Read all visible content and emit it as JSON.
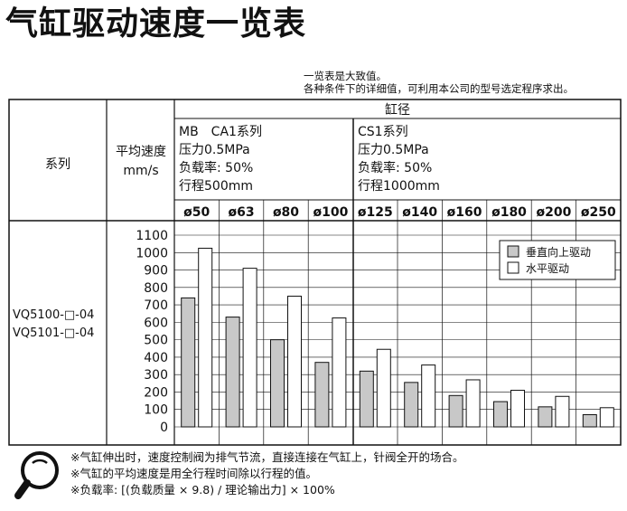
{
  "title": "气缸驱动速度一览表",
  "notes_top": [
    "一览表是大致值。",
    "各种条件下的详细值，可利用本公司的型号选定程序求出。"
  ],
  "header": {
    "col_series": "系列",
    "col_speed_1": "平均速度",
    "col_speed_2": "mm/s",
    "group_label": "缸径",
    "cond_left": [
      "MB　CA1系列",
      "压力0.5MPa",
      "负载率: 50%",
      "行程500mm"
    ],
    "cond_right": [
      "CS1系列",
      "压力0.5MPa",
      "负载率: 50%",
      "行程1000mm"
    ]
  },
  "row_series": [
    "VQ5100-□-04",
    "VQ5101-□-04"
  ],
  "legend": [
    {
      "label": "垂直向上驱动",
      "color": "#c8c8c8"
    },
    {
      "label": "水平驱动",
      "color": "#ffffff"
    }
  ],
  "footnotes": [
    "※气缸伸出时，速度控制阀为排气节流，直接连接在气缸上，针阀全开的场合。",
    "※气缸的平均速度是用全行程时间除以行程的值。",
    "※负载率: [(负载质量 × 9.8) / 理论输出力] × 100%"
  ],
  "chart_data": {
    "type": "bar",
    "categories": [
      "ø50",
      "ø63",
      "ø80",
      "ø100",
      "ø125",
      "ø140",
      "ø160",
      "ø180",
      "ø200",
      "ø250"
    ],
    "series": [
      {
        "name": "垂直向上驱动",
        "values": [
          740,
          630,
          500,
          370,
          320,
          255,
          180,
          145,
          115,
          70
        ]
      },
      {
        "name": "水平驱动",
        "values": [
          1025,
          910,
          750,
          625,
          445,
          355,
          270,
          210,
          175,
          110
        ]
      }
    ],
    "ylabel": "平均速度 mm/s",
    "yticks": [
      1100,
      1000,
      900,
      800,
      700,
      600,
      500,
      400,
      300,
      200,
      100,
      0
    ],
    "ylim": [
      0,
      1100
    ],
    "grid": true,
    "legend_position": "top-right"
  }
}
